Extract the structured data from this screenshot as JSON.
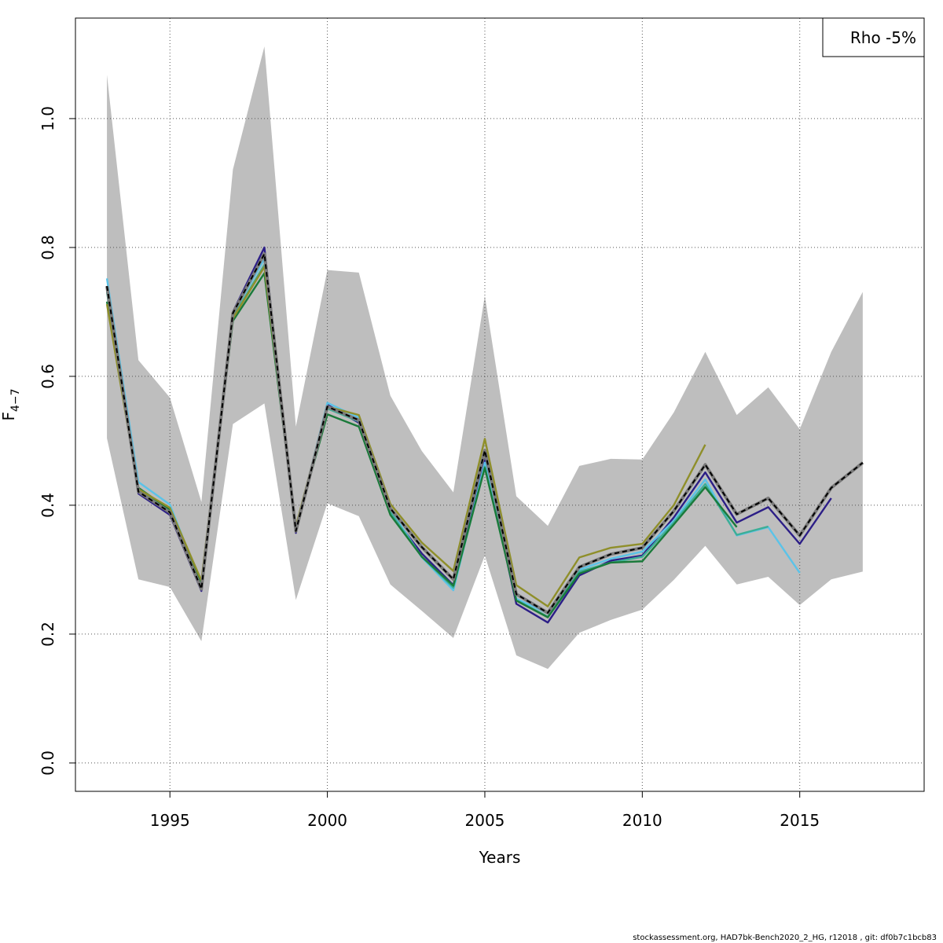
{
  "chart_data": {
    "type": "line",
    "xlabel": "Years",
    "ylabel": "F",
    "ylabel_subscript": "4−7",
    "xlim": [
      1992.0,
      2018.95
    ],
    "ylim": [
      -0.044,
      1.156
    ],
    "x_ticks": [
      1995,
      2000,
      2005,
      2010,
      2015
    ],
    "y_ticks": [
      0.0,
      0.2,
      0.4,
      0.6,
      0.8,
      1.0
    ],
    "y_tick_labels": [
      "0.0",
      "0.2",
      "0.4",
      "0.6",
      "0.8",
      "1.0"
    ],
    "grid": true,
    "legend": {
      "position": "top-right",
      "text": "Rho -5%"
    },
    "footer": "stockassessment.org, HAD7bk-Bench2020_2_HG, r12018 , git: df0b7c1bcb83",
    "colors": {
      "band": "#bebebe",
      "base": "#000000",
      "peel_navy": "#2c1e87",
      "peel_skyblue": "#5bc3e8",
      "peel_teal": "#3cae96",
      "peel_green": "#1a7a3a",
      "peel_olive": "#8f8f2a"
    },
    "band": {
      "x": [
        1993,
        1994,
        1995,
        1996,
        1997,
        1998,
        1999,
        2000,
        2001,
        2002,
        2003,
        2004,
        2005,
        2006,
        2007,
        2008,
        2009,
        2010,
        2011,
        2012,
        2013,
        2014,
        2015,
        2016,
        2017
      ],
      "upper": [
        1.068,
        0.625,
        0.567,
        0.405,
        0.921,
        1.112,
        0.522,
        0.765,
        0.761,
        0.57,
        0.484,
        0.42,
        0.725,
        0.414,
        0.368,
        0.461,
        0.472,
        0.471,
        0.544,
        0.638,
        0.54,
        0.583,
        0.518,
        0.638,
        0.731
      ],
      "lower": [
        0.504,
        0.285,
        0.273,
        0.189,
        0.526,
        0.558,
        0.253,
        0.403,
        0.383,
        0.277,
        0.236,
        0.194,
        0.322,
        0.167,
        0.146,
        0.202,
        0.222,
        0.238,
        0.284,
        0.337,
        0.277,
        0.289,
        0.245,
        0.285,
        0.297
      ]
    },
    "series": [
      {
        "role": "peel-2016",
        "color": "#2c1e87",
        "x": [
          1993,
          1994,
          1995,
          1996,
          1997,
          1998,
          1999,
          2000,
          2001,
          2002,
          2003,
          2004,
          2005,
          2006,
          2007,
          2008,
          2009,
          2010,
          2011,
          2012,
          2013,
          2014,
          2015,
          2016
        ],
        "values": [
          0.74,
          0.418,
          0.385,
          0.267,
          0.7,
          0.8,
          0.357,
          0.556,
          0.528,
          0.388,
          0.325,
          0.276,
          0.47,
          0.247,
          0.218,
          0.291,
          0.314,
          0.322,
          0.381,
          0.451,
          0.373,
          0.397,
          0.34,
          0.411
        ]
      },
      {
        "role": "peel-2015",
        "color": "#5bc3e8",
        "x": [
          1993,
          1994,
          1995,
          1996,
          1997,
          1998,
          1999,
          2000,
          2001,
          2002,
          2003,
          2004,
          2005,
          2006,
          2007,
          2008,
          2009,
          2010,
          2011,
          2012,
          2013,
          2014,
          2015
        ],
        "values": [
          0.752,
          0.436,
          0.401,
          0.276,
          0.697,
          0.782,
          0.362,
          0.559,
          0.536,
          0.393,
          0.319,
          0.268,
          0.466,
          0.255,
          0.232,
          0.3,
          0.317,
          0.328,
          0.376,
          0.44,
          0.353,
          0.366,
          0.295
        ]
      },
      {
        "role": "peel-2014",
        "color": "#3cae96",
        "x": [
          1993,
          1994,
          1995,
          1996,
          1997,
          1998,
          1999,
          2000,
          2001,
          2002,
          2003,
          2004,
          2005,
          2006,
          2007,
          2008,
          2009,
          2010,
          2011,
          2012,
          2013,
          2014
        ],
        "values": [
          0.731,
          0.423,
          0.392,
          0.277,
          0.692,
          0.773,
          0.363,
          0.55,
          0.53,
          0.389,
          0.32,
          0.272,
          0.46,
          0.253,
          0.227,
          0.297,
          0.311,
          0.32,
          0.373,
          0.433,
          0.354,
          0.367
        ]
      },
      {
        "role": "peel-2013",
        "color": "#1a7a3a",
        "x": [
          1993,
          1994,
          1995,
          1996,
          1997,
          1998,
          1999,
          2000,
          2001,
          2002,
          2003,
          2004,
          2005,
          2006,
          2007,
          2008,
          2009,
          2010,
          2011,
          2012,
          2013
        ],
        "values": [
          0.716,
          0.427,
          0.393,
          0.28,
          0.686,
          0.76,
          0.365,
          0.541,
          0.522,
          0.385,
          0.32,
          0.275,
          0.458,
          0.252,
          0.226,
          0.294,
          0.311,
          0.313,
          0.37,
          0.428,
          0.366
        ]
      },
      {
        "role": "peel-2012",
        "color": "#8f8f2a",
        "x": [
          1993,
          1994,
          1995,
          1996,
          1997,
          1998,
          1999,
          2000,
          2001,
          2002,
          2003,
          2004,
          2005,
          2006,
          2007,
          2008,
          2009,
          2010,
          2011,
          2012
        ],
        "values": [
          0.712,
          0.425,
          0.396,
          0.283,
          0.69,
          0.77,
          0.367,
          0.553,
          0.54,
          0.402,
          0.342,
          0.298,
          0.503,
          0.276,
          0.243,
          0.319,
          0.334,
          0.34,
          0.4,
          0.494
        ]
      },
      {
        "role": "base",
        "color": "#000000",
        "dashed": true,
        "x": [
          1993,
          1994,
          1995,
          1996,
          1997,
          1998,
          1999,
          2000,
          2001,
          2002,
          2003,
          2004,
          2005,
          2006,
          2007,
          2008,
          2009,
          2010,
          2011,
          2012,
          2013,
          2014,
          2015,
          2016,
          2017
        ],
        "values": [
          0.74,
          0.421,
          0.389,
          0.27,
          0.698,
          0.79,
          0.36,
          0.553,
          0.532,
          0.395,
          0.335,
          0.285,
          0.485,
          0.262,
          0.233,
          0.304,
          0.324,
          0.334,
          0.391,
          0.463,
          0.386,
          0.411,
          0.353,
          0.427,
          0.466
        ]
      }
    ]
  }
}
